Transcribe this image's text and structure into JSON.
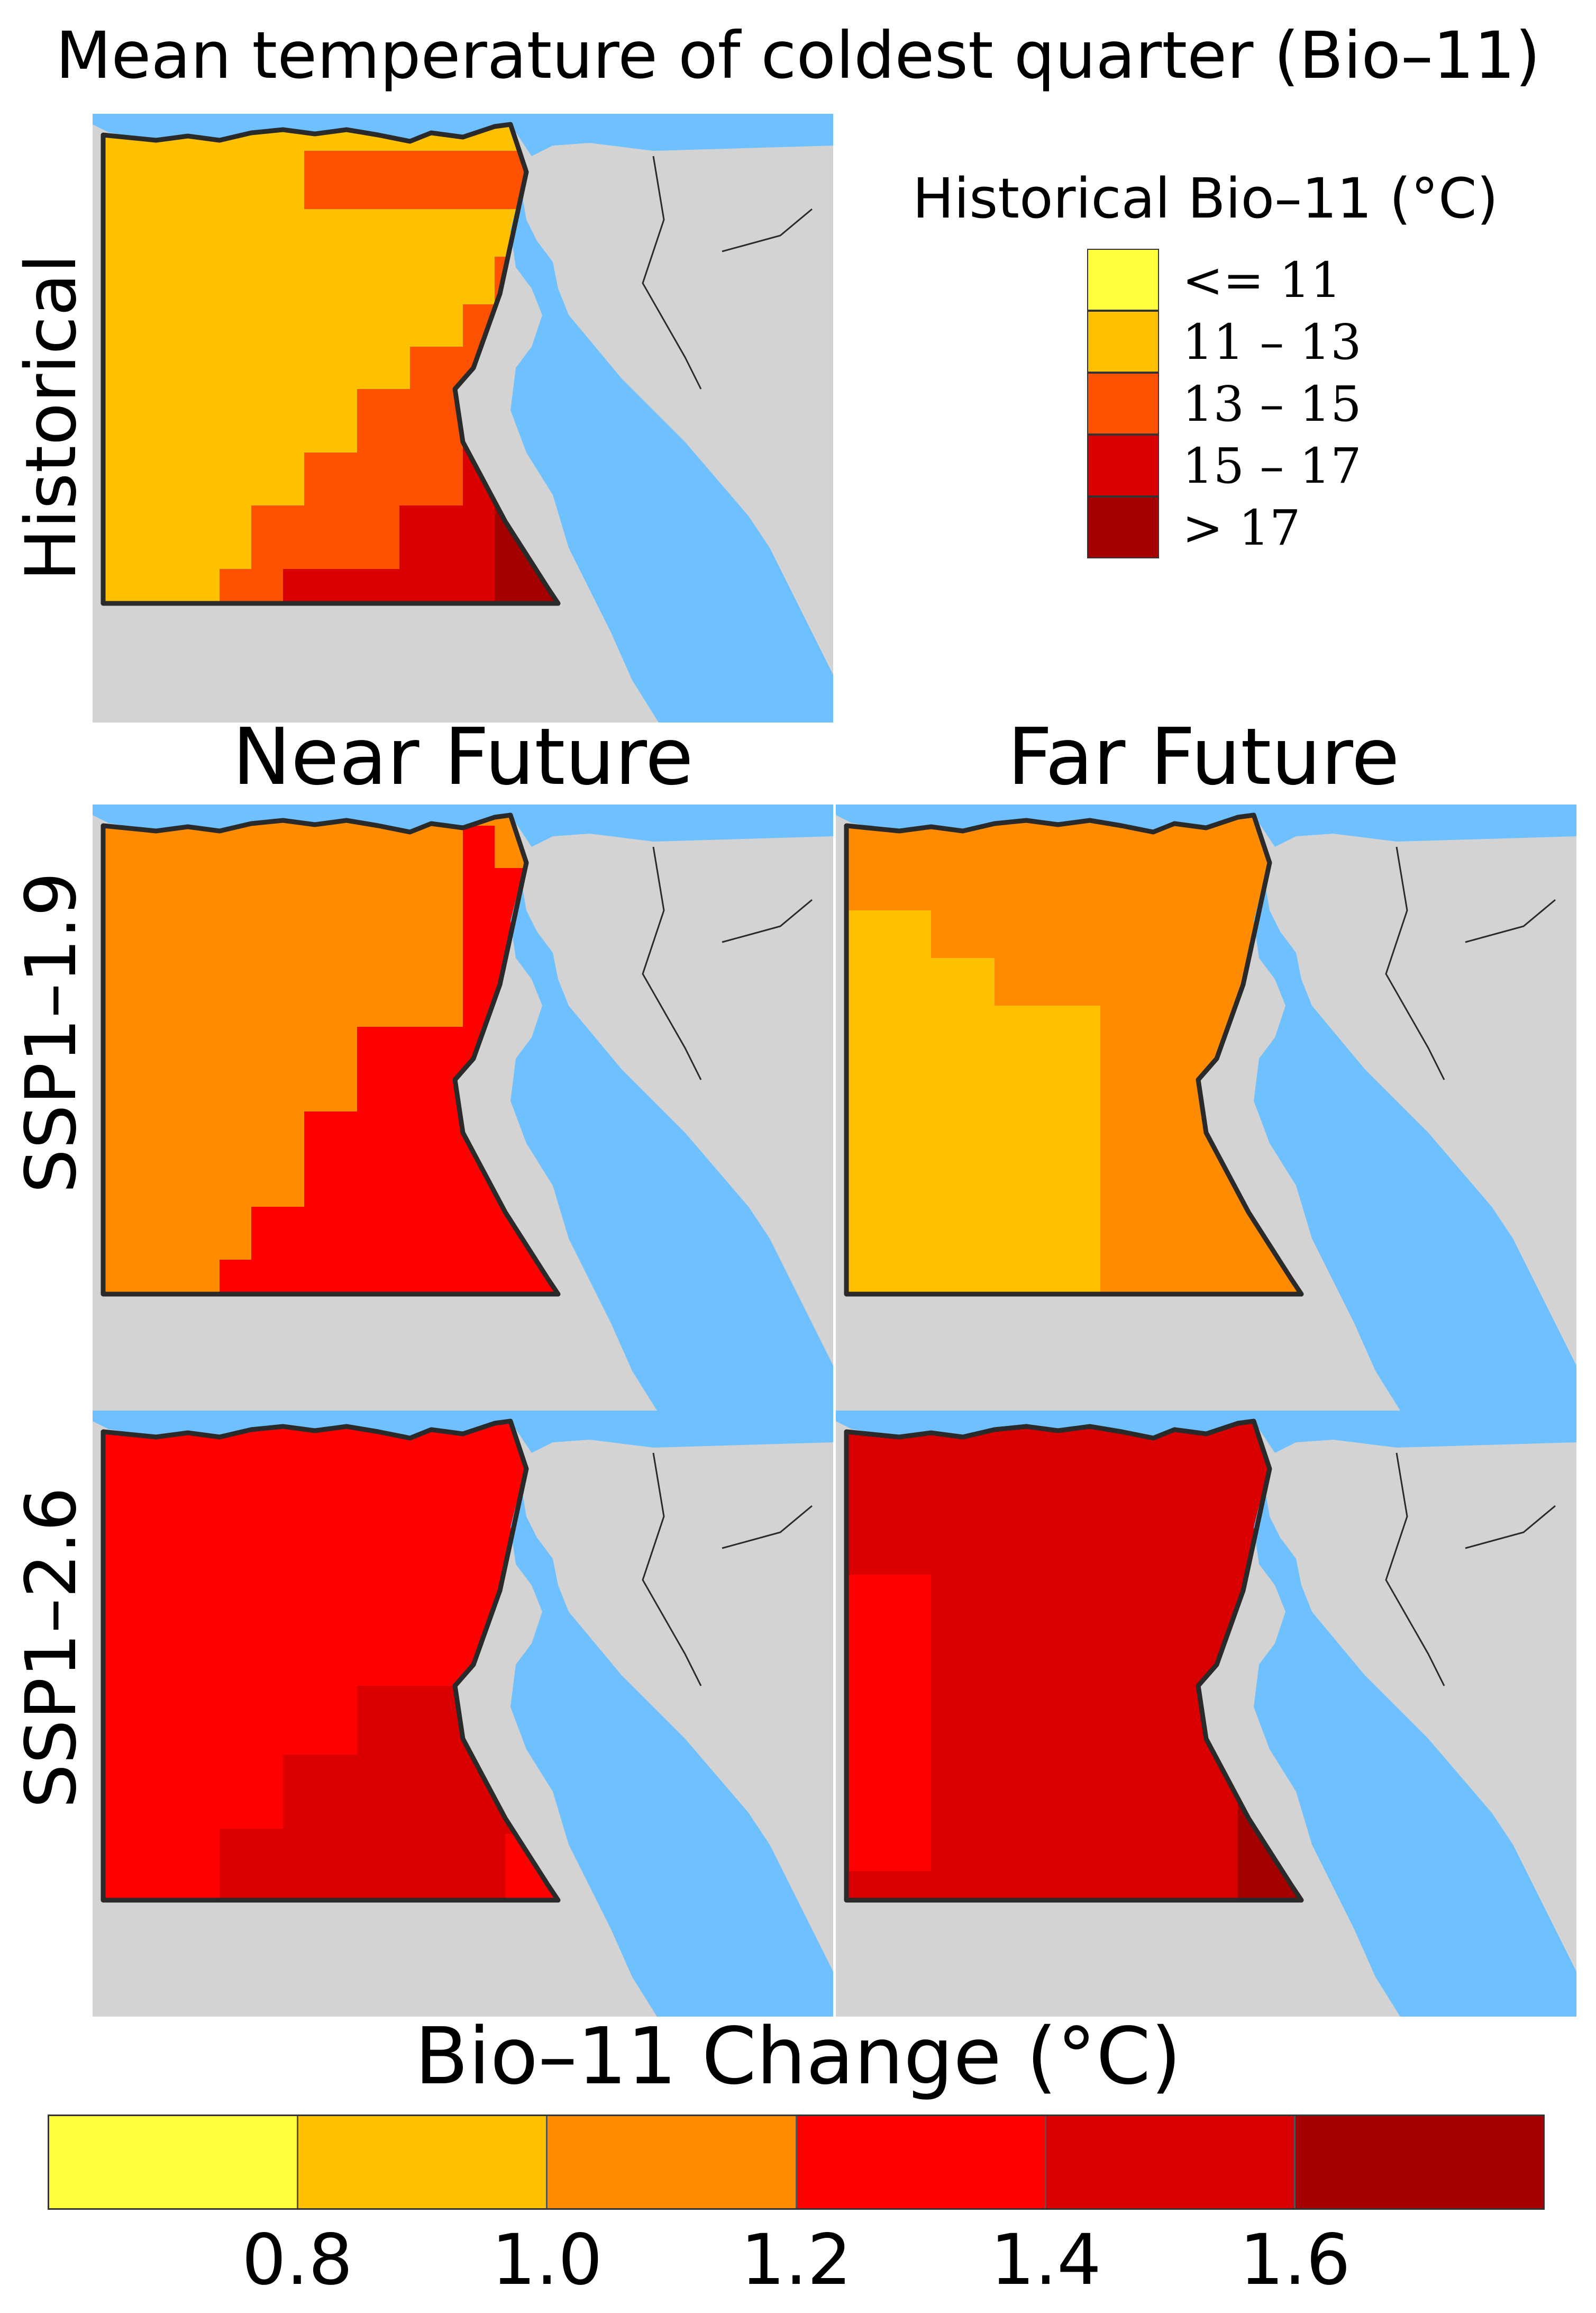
{
  "title": "Mean temperature of coldest quarter (Bio–11)",
  "row_labels": {
    "historical": "Historical",
    "ssp119": "SSP1–1.9",
    "ssp126": "SSP1–2.6"
  },
  "column_labels": {
    "near": "Near Future",
    "far": "Far Future"
  },
  "historical_legend": {
    "title": "Historical Bio–11 (°C)",
    "items": [
      {
        "label": "<= 11",
        "color": "#ffff3c"
      },
      {
        "label": "11 – 13",
        "color": "#ffc000"
      },
      {
        "label": "13 – 15",
        "color": "#ff5200"
      },
      {
        "label": "15 – 17",
        "color": "#d80000"
      },
      {
        "label": "> 17",
        "color": "#a50000"
      }
    ]
  },
  "change_colorbar": {
    "title": "Bio–11 Change (°C)",
    "colors": [
      "#ffff3c",
      "#ffc000",
      "#ff8c00",
      "#ff0000",
      "#d80000",
      "#a50000"
    ],
    "ticks": [
      "0.8",
      "1.0",
      "1.2",
      "1.4",
      "1.6"
    ],
    "tick_values": [
      0.8,
      1.0,
      1.2,
      1.4,
      1.6
    ],
    "range": [
      0.6,
      1.8
    ]
  },
  "colors": {
    "sea": "#6ec0ff",
    "land_outside": "#d3d3d3",
    "border": "#2a2a2a"
  }
}
